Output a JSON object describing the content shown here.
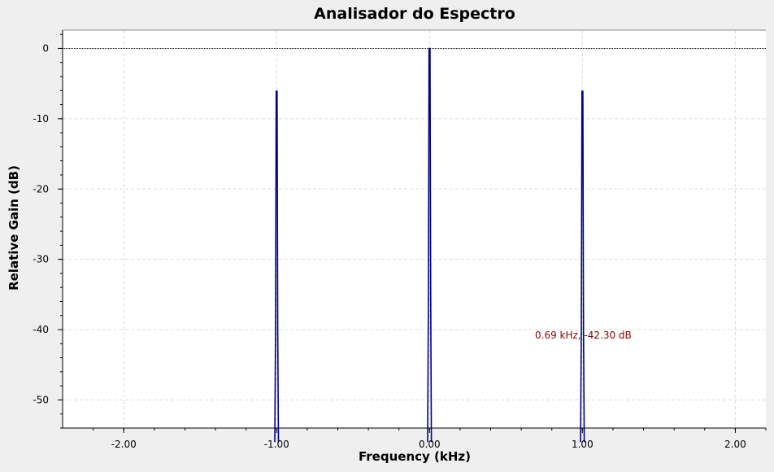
{
  "chart_data": {
    "type": "line",
    "title": "Analisador do Espectro",
    "xlabel": "Frequency (kHz)",
    "ylabel": "Relative Gain (dB)",
    "xlim": [
      -2.4,
      2.2
    ],
    "ylim": [
      -54,
      2.6
    ],
    "xticks": [
      -2.0,
      -1.0,
      0.0,
      1.0,
      2.0
    ],
    "xtick_labels": [
      "-2.00",
      "-1.00",
      "0.00",
      "1.00",
      "2.00"
    ],
    "yticks": [
      0,
      -10,
      -20,
      -30,
      -40,
      -50
    ],
    "ytick_labels": [
      "0",
      "-10",
      "-20",
      "-30",
      "-40",
      "-50"
    ],
    "grid": true,
    "series": [
      {
        "color": "#00008b",
        "peaks": [
          {
            "x": -1.0,
            "y": -6.1
          },
          {
            "x": 0.0,
            "y": 0.0
          },
          {
            "x": 1.0,
            "y": -6.1
          }
        ],
        "floor": -60
      }
    ],
    "reference_line": {
      "y": 0,
      "color": "#000000"
    },
    "annotations": [
      {
        "text": "0.69 kHz, -42.30 dB",
        "color": "#8b0000"
      }
    ]
  }
}
